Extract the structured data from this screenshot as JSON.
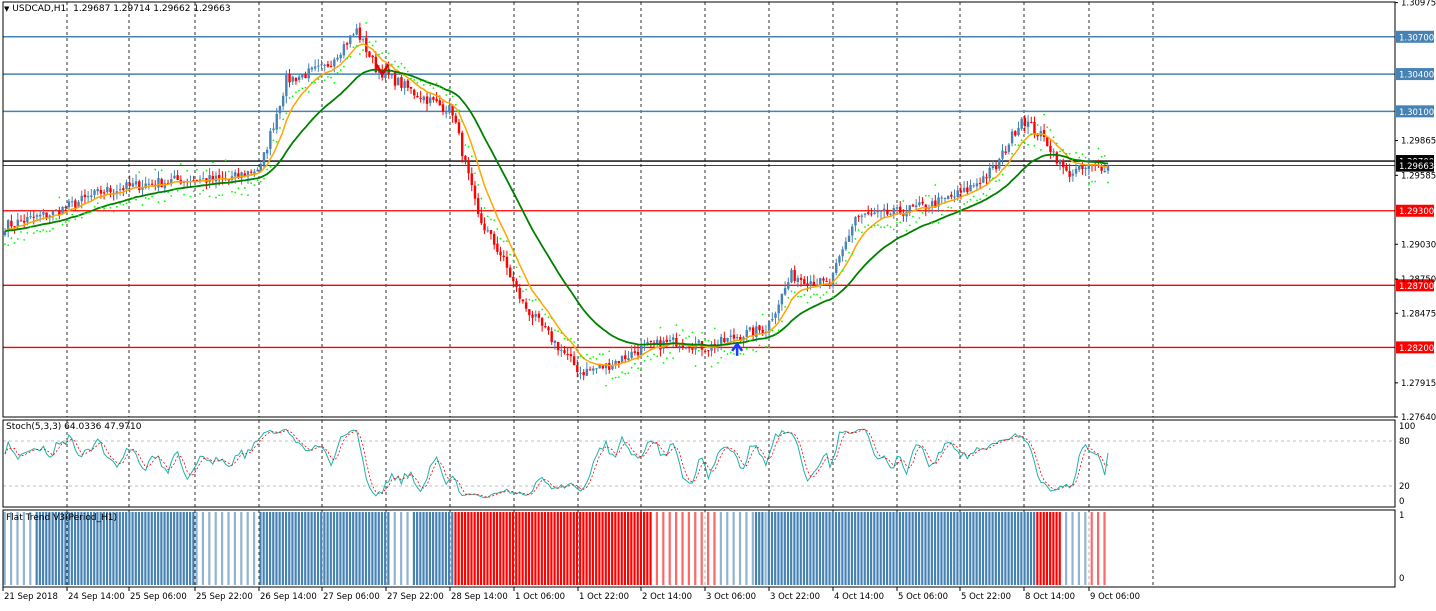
{
  "header": {
    "symbol": "USDCAD,H1",
    "ohlc": "1.29687 1.29714 1.29662 1.29663"
  },
  "stoch_label": "Stoch(5,3,3) 64.0336 47.9710",
  "flat_label": "Flat Trend V3(Period_H1)",
  "colors": {
    "bull": "#4682b4",
    "bear": "#ff0000",
    "ma_fast": "#ffa500",
    "ma_slow": "#008000",
    "sar": "#00ff00",
    "line_blue": "#4682b4",
    "line_red": "#ff0000",
    "stoch_main": "#20b2aa",
    "stoch_signal": "#ff0000"
  },
  "price_axis": [
    "1.30975",
    "1.29865",
    "1.29585",
    "1.29030",
    "1.28750",
    "1.28475",
    "1.27915",
    "1.27640"
  ],
  "price_lines": [
    {
      "price": 1.307,
      "label": "1.30700",
      "color": "blue"
    },
    {
      "price": 1.304,
      "label": "1.30400",
      "color": "blue"
    },
    {
      "price": 1.301,
      "label": "1.30100",
      "color": "blue"
    },
    {
      "price": 1.297,
      "label": "1.29700",
      "color": "black"
    },
    {
      "price": 1.293,
      "label": "1.29300",
      "color": "red"
    },
    {
      "price": 1.287,
      "label": "1.28700",
      "color": "red"
    },
    {
      "price": 1.282,
      "label": "1.28200",
      "color": "red"
    }
  ],
  "current_price": {
    "price": 1.29663,
    "label": "1.29663"
  },
  "stoch_axis": [
    "100",
    "80",
    "20",
    "0"
  ],
  "flat_axis": [
    "1",
    "0"
  ],
  "time_axis": [
    "21 Sep 2018",
    "24 Sep 14:00",
    "25 Sep 06:00",
    "25 Sep 22:00",
    "26 Sep 14:00",
    "27 Sep 06:00",
    "27 Sep 22:00",
    "28 Sep 14:00",
    "1 Oct 06:00",
    "1 Oct 22:00",
    "2 Oct 14:00",
    "3 Oct 06:00",
    "3 Oct 22:00",
    "4 Oct 14:00",
    "5 Oct 06:00",
    "5 Oct 22:00",
    "8 Oct 14:00",
    "9 Oct 06:00"
  ],
  "chart_data": {
    "type": "candlestick",
    "symbol": "USDCAD",
    "timeframe": "H1",
    "ylim": [
      1.2764,
      1.3098
    ],
    "close_anchors": [
      {
        "t": 0,
        "v": 1.2918
      },
      {
        "t": 15,
        "v": 1.2928
      },
      {
        "t": 30,
        "v": 1.2945
      },
      {
        "t": 40,
        "v": 1.295
      },
      {
        "t": 55,
        "v": 1.2955
      },
      {
        "t": 70,
        "v": 1.2955
      },
      {
        "t": 80,
        "v": 1.2965
      },
      {
        "t": 88,
        "v": 1.3035
      },
      {
        "t": 100,
        "v": 1.3045
      },
      {
        "t": 110,
        "v": 1.3075
      },
      {
        "t": 116,
        "v": 1.3045
      },
      {
        "t": 128,
        "v": 1.3025
      },
      {
        "t": 140,
        "v": 1.301
      },
      {
        "t": 148,
        "v": 1.2925
      },
      {
        "t": 155,
        "v": 1.2895
      },
      {
        "t": 162,
        "v": 1.2855
      },
      {
        "t": 170,
        "v": 1.283
      },
      {
        "t": 180,
        "v": 1.28
      },
      {
        "t": 188,
        "v": 1.2805
      },
      {
        "t": 200,
        "v": 1.282
      },
      {
        "t": 210,
        "v": 1.2825
      },
      {
        "t": 220,
        "v": 1.282
      },
      {
        "t": 230,
        "v": 1.283
      },
      {
        "t": 238,
        "v": 1.2835
      },
      {
        "t": 246,
        "v": 1.2878
      },
      {
        "t": 258,
        "v": 1.287
      },
      {
        "t": 266,
        "v": 1.2925
      },
      {
        "t": 278,
        "v": 1.2928
      },
      {
        "t": 290,
        "v": 1.2935
      },
      {
        "t": 300,
        "v": 1.2945
      },
      {
        "t": 310,
        "v": 1.2965
      },
      {
        "t": 318,
        "v": 1.3005
      },
      {
        "t": 326,
        "v": 1.2985
      },
      {
        "t": 332,
        "v": 1.296
      },
      {
        "t": 340,
        "v": 1.2965
      },
      {
        "t": 345,
        "v": 1.29663
      }
    ],
    "stochastic": {
      "k_period": 5,
      "d_period": 3,
      "slowing": 3,
      "main": 64.0336,
      "signal": 47.971,
      "levels": [
        80,
        20
      ]
    }
  }
}
